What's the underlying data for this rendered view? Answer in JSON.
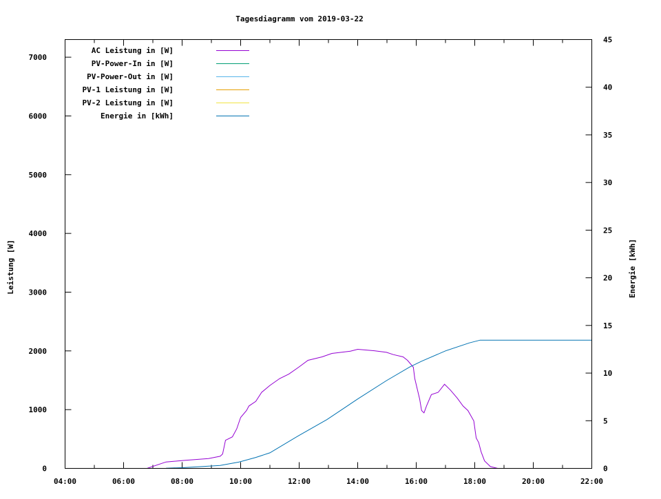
{
  "chart_data": {
    "type": "line",
    "title": "Tagesdiagramm vom 2019-03-22",
    "xlabel": "",
    "ylabel": "Leistung [W]",
    "y2label": "Energie [kWh]",
    "xlim": [
      "04:00",
      "22:00"
    ],
    "ylim": [
      0,
      7300
    ],
    "y2lim": [
      0,
      45
    ],
    "grid": false,
    "legend_position": "top-left",
    "x_ticks": [
      "04:00",
      "06:00",
      "08:00",
      "10:00",
      "12:00",
      "14:00",
      "16:00",
      "18:00",
      "20:00",
      "22:00"
    ],
    "y_ticks": [
      "0",
      "1000",
      "2000",
      "3000",
      "4000",
      "5000",
      "6000",
      "7000"
    ],
    "y2_ticks": [
      "0",
      "5",
      "10",
      "15",
      "20",
      "25",
      "30",
      "35",
      "40",
      "45"
    ],
    "series": [
      {
        "name": "AC Leistung in [W]",
        "axis": "y",
        "color": "#9400d3",
        "x": [
          "06:48",
          "07:27",
          "08:05",
          "08:54",
          "09:18",
          "09:23",
          "09:29",
          "09:43",
          "09:52",
          "10:00",
          "10:12",
          "10:17",
          "10:31",
          "10:43",
          "11:00",
          "11:20",
          "11:39",
          "11:59",
          "12:18",
          "12:47",
          "13:07",
          "13:45",
          "14:00",
          "14:34",
          "14:59",
          "15:13",
          "15:33",
          "15:42",
          "15:54",
          "15:57",
          "16:07",
          "16:11",
          "16:16",
          "16:21",
          "16:31",
          "16:45",
          "16:58",
          "17:10",
          "17:24",
          "17:36",
          "17:46",
          "17:58",
          "18:03",
          "18:08",
          "18:13",
          "18:20",
          "18:32",
          "18:47"
        ],
        "y": [
          0,
          109,
          136,
          167,
          206,
          245,
          478,
          537,
          673,
          867,
          984,
          1062,
          1140,
          1295,
          1412,
          1529,
          1607,
          1723,
          1840,
          1898,
          1957,
          1996,
          2027,
          2003,
          1976,
          1937,
          1898,
          1840,
          1723,
          1529,
          1179,
          984,
          945,
          1062,
          1256,
          1295,
          1432,
          1334,
          1198,
          1062,
          984,
          809,
          517,
          440,
          284,
          128,
          31,
          0
        ]
      },
      {
        "name": "PV-Power-In in [W]",
        "axis": "y",
        "color": "#009e73",
        "x": [],
        "y": []
      },
      {
        "name": "PV-Power-Out in [W]",
        "axis": "y",
        "color": "#56b4e9",
        "x": [],
        "y": []
      },
      {
        "name": "PV-1 Leistung in [W]",
        "axis": "y",
        "color": "#e69f00",
        "x": [],
        "y": []
      },
      {
        "name": "PV-2 Leistung in [W]",
        "axis": "y",
        "color": "#f0e442",
        "x": [],
        "y": []
      },
      {
        "name": "Energie in [kWh]",
        "axis": "y2",
        "color": "#0072b2",
        "x": [
          "07:27",
          "08:01",
          "08:40",
          "09:18",
          "09:57",
          "10:31",
          "11:00",
          "11:59",
          "12:57",
          "14:00",
          "14:59",
          "15:47",
          "16:11",
          "17:00",
          "17:49",
          "18:11",
          "22:00"
        ],
        "y": [
          0.02,
          0.07,
          0.19,
          0.31,
          0.67,
          1.15,
          1.63,
          3.44,
          5.12,
          7.28,
          9.21,
          10.65,
          11.25,
          12.33,
          13.17,
          13.46,
          13.46
        ]
      }
    ]
  }
}
